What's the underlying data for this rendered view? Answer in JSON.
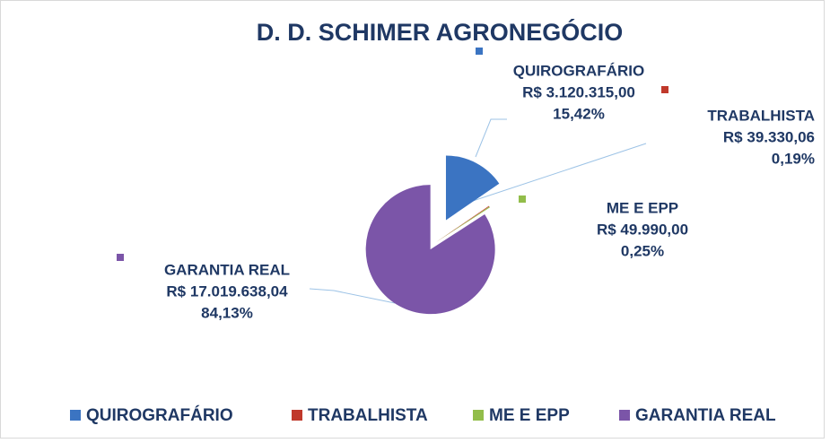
{
  "chart_data": {
    "type": "pie",
    "title": "D. D. SCHIMER AGRONEGÓCIO",
    "categories": [
      "QUIROGRAFÁRIO",
      "TRABALHISTA",
      "ME E EPP",
      "GARANTIA REAL"
    ],
    "values": [
      3120315.0,
      39330.06,
      49990.0,
      17019638.04
    ],
    "value_labels": [
      "R$ 3.120.315,00",
      "R$ 39.330,06",
      "R$ 49.990,00",
      "R$ 17.019.638,04"
    ],
    "percents": [
      15.42,
      0.19,
      0.25,
      84.13
    ],
    "percent_labels": [
      "15,42%",
      "0,19%",
      "0,25%",
      "84,13%"
    ],
    "colors": [
      "#3b74c2",
      "#c0392b",
      "#92bd4a",
      "#7b55a8"
    ],
    "legend": "bottom"
  }
}
